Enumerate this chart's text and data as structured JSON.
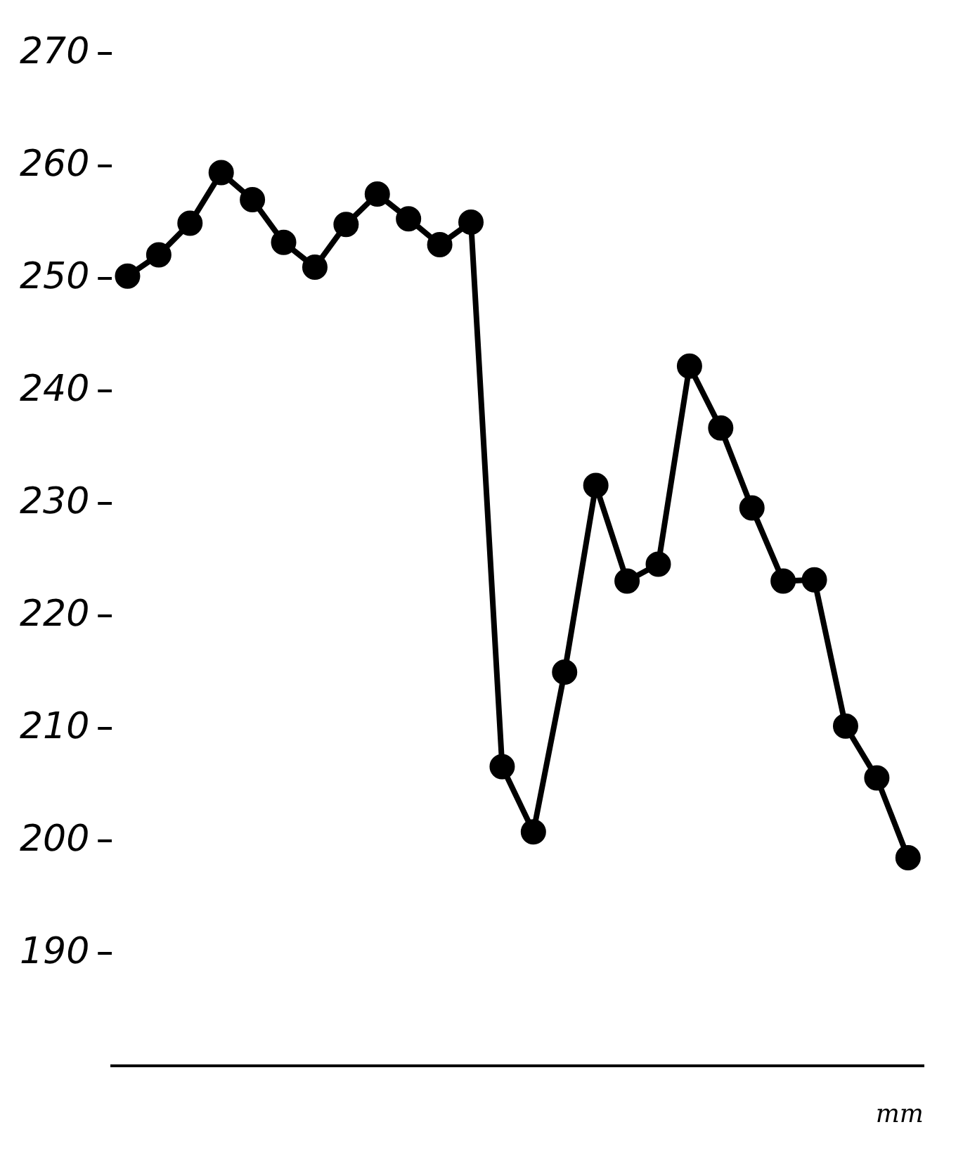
{
  "chart_data": {
    "type": "line",
    "xlabel": "mm",
    "categories": [
      null,
      null,
      null,
      null,
      null,
      null,
      null,
      null,
      null,
      null,
      null,
      null,
      null,
      null,
      null,
      null,
      null,
      null,
      null,
      null,
      null,
      null,
      null,
      null,
      null,
      null
    ],
    "series": [
      {
        "color": "#000000",
        "values": [
          250.2,
          252.1,
          254.9,
          259.4,
          257,
          253.2,
          251,
          254.8,
          257.5,
          255.3,
          253,
          255,
          206.6,
          200.8,
          215,
          231.6,
          223.1,
          224.6,
          242.2,
          236.7,
          229.6,
          223.1,
          223.2,
          210.2,
          205.6,
          198.5
        ]
      }
    ],
    "ylim": [
      180,
      270
    ],
    "yticks": [
      190,
      200,
      210,
      220,
      230,
      240,
      250,
      260,
      270
    ],
    "grid": false,
    "legend": false,
    "marker": "circle",
    "line_style": "solid"
  }
}
